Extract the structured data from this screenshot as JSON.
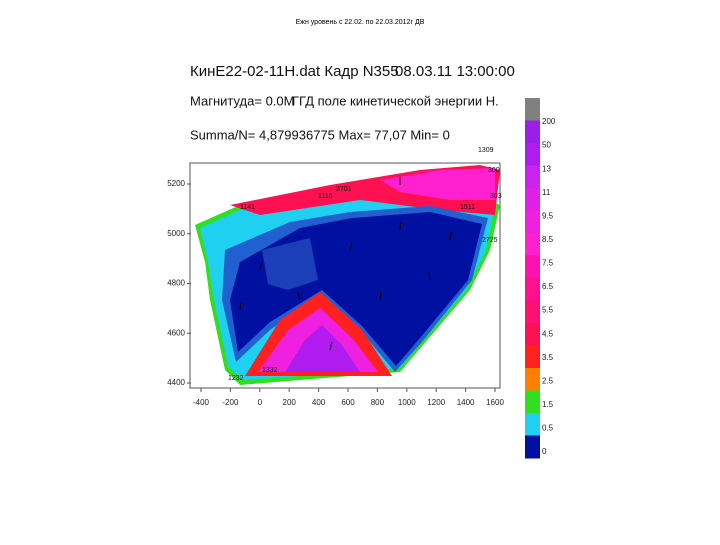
{
  "caption": "Ежн уровень с 22.02. по 22.03.2012г ДВ",
  "header": {
    "file": "КинE22-02-11H.dat Кадр N355",
    "datetime": "08.03.11 13:00:00",
    "magnitude": "Магнитуда= 0.0M",
    "field": "ГГД поле кинетической энергии Н.",
    "summary": "Summa/N= 4,879936775 Max= 77,07 Min= 0"
  },
  "map": {
    "yticks": [
      "5200",
      "5000",
      "4800",
      "4600",
      "4400"
    ],
    "xticks": [
      "-400",
      "-200",
      "0",
      "200",
      "400",
      "600",
      "800",
      "1000",
      "1200",
      "1400",
      "1600"
    ],
    "stations": [
      "1309",
      "300",
      "303",
      "2701",
      "1116",
      "1141",
      "1511",
      "2725",
      "1232",
      "1332"
    ]
  },
  "colorbar": {
    "colors": [
      "#808080",
      "#9a1fe8",
      "#b01cf0",
      "#cc22ee",
      "#e020e8",
      "#f020e0",
      "#ff20d0",
      "#ff10b0",
      "#ff1090",
      "#ff1070",
      "#ff1050",
      "#ff2020",
      "#ff8000",
      "#30e020",
      "#20d0f0",
      "#0010a0"
    ],
    "labels": [
      "200",
      "50",
      "13",
      "11",
      "9.5",
      "8.5",
      "7.5",
      "6.5",
      "5.5",
      "4.5",
      "3.5",
      "2.5",
      "1.5",
      "0.5",
      "0"
    ]
  }
}
